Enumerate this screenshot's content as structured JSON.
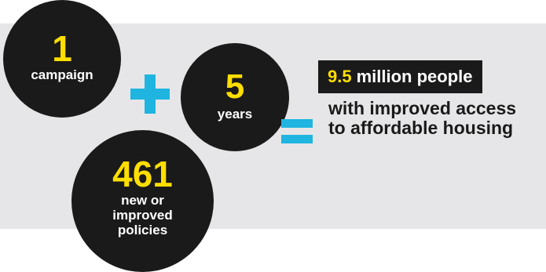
{
  "campaign": {
    "number": "1",
    "label": "campaign"
  },
  "years": {
    "number": "5",
    "label": "years"
  },
  "policies": {
    "number": "461",
    "label": "new or improved policies"
  },
  "result": {
    "highlight": "9.5",
    "headline_rest": "million people",
    "description": "with improved access to affordable housing"
  },
  "colors": {
    "band": "#e6e6e8",
    "circle": "#1a1a1a",
    "accent_yellow": "#ffde00",
    "accent_blue": "#1fb5e0"
  },
  "icons": {
    "plus": "plus-icon",
    "equals": "equals-icon"
  }
}
